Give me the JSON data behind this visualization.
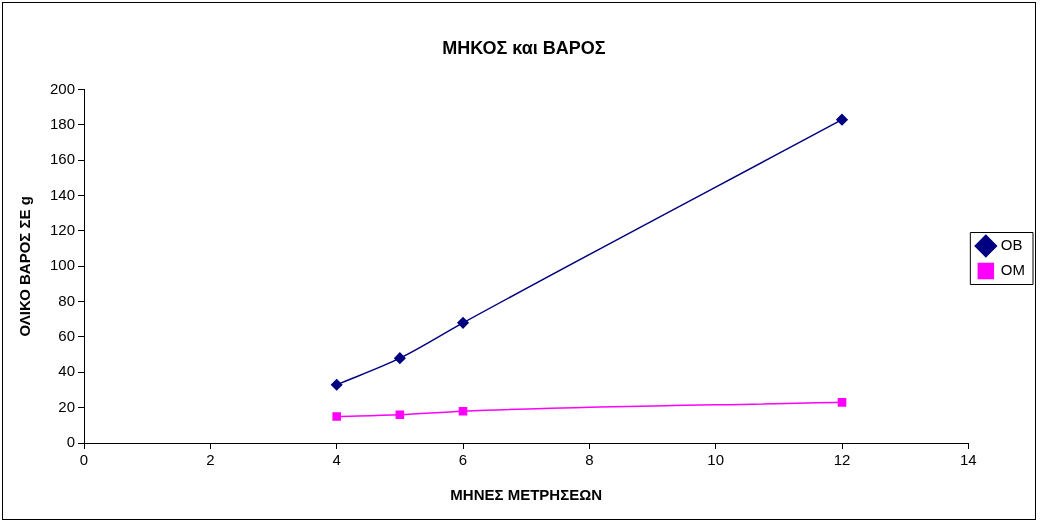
{
  "chart_data": {
    "type": "line",
    "title": "ΜΗΚΟΣ και ΒΑΡΟΣ",
    "xlabel": "ΜΗΝΕΣ ΜΕΤΡΗΣΕΩΝ",
    "ylabel": "ΟΛΙΚΟ ΒΑΡΟΣ ΣΕ g",
    "x": [
      4,
      5,
      6,
      12
    ],
    "series": [
      {
        "name": "ΟΒ",
        "color": "#000080",
        "marker": "diamond",
        "values": [
          33,
          48,
          68,
          183
        ]
      },
      {
        "name": "ΟΜ",
        "color": "#ff00ff",
        "marker": "square",
        "values": [
          15,
          16,
          18,
          23
        ]
      }
    ],
    "xlim": [
      0,
      14
    ],
    "xticks": [
      0,
      2,
      4,
      6,
      8,
      10,
      12,
      14
    ],
    "ylim": [
      0,
      200
    ],
    "yticks": [
      0,
      20,
      40,
      60,
      80,
      100,
      120,
      140,
      160,
      180,
      200
    ],
    "grid": false,
    "legend": "right",
    "line_style": "solid"
  }
}
